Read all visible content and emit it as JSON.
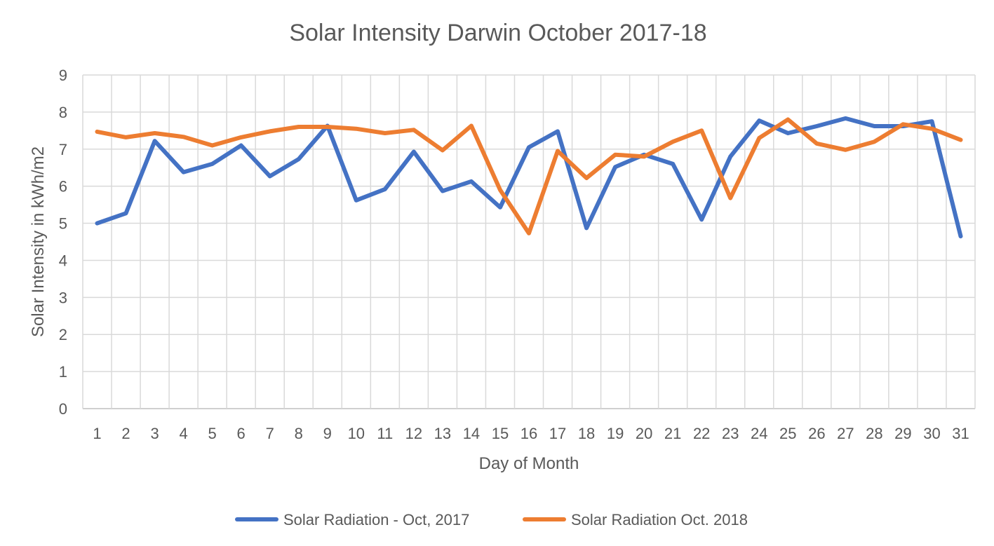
{
  "chart_data": {
    "type": "line",
    "title": "Solar Intensity Darwin October 2017-18",
    "xlabel": "Day of Month",
    "ylabel": "Solar Intensity in kWh/m2",
    "ylim": [
      0,
      9
    ],
    "yticks": [
      "0",
      "1",
      "2",
      "3",
      "4",
      "5",
      "6",
      "7",
      "8",
      "9"
    ],
    "grid": true,
    "legend_position": "bottom",
    "categories": [
      "1",
      "2",
      "3",
      "4",
      "5",
      "6",
      "7",
      "8",
      "9",
      "10",
      "11",
      "12",
      "13",
      "14",
      "15",
      "16",
      "17",
      "18",
      "19",
      "20",
      "21",
      "22",
      "23",
      "24",
      "25",
      "26",
      "27",
      "28",
      "29",
      "30",
      "31"
    ],
    "series": [
      {
        "name": "Solar Radiation - Oct, 2017",
        "color": "#4472c4",
        "values": [
          5.0,
          5.27,
          7.22,
          6.38,
          6.6,
          7.1,
          6.27,
          6.73,
          7.63,
          5.62,
          5.92,
          6.93,
          5.87,
          6.13,
          5.43,
          7.05,
          7.48,
          4.87,
          6.52,
          6.85,
          6.6,
          5.1,
          6.8,
          7.77,
          7.43,
          7.62,
          7.83,
          7.62,
          7.62,
          7.75,
          4.65
        ]
      },
      {
        "name": "Solar Radiation Oct. 2018",
        "color": "#ed7d31",
        "values": [
          7.47,
          7.32,
          7.43,
          7.33,
          7.1,
          7.32,
          7.48,
          7.6,
          7.6,
          7.55,
          7.43,
          7.52,
          6.97,
          7.63,
          5.9,
          4.73,
          6.95,
          6.22,
          6.85,
          6.8,
          7.2,
          7.5,
          5.68,
          7.3,
          7.8,
          7.15,
          6.98,
          7.2,
          7.67,
          7.55,
          7.25
        ]
      }
    ]
  }
}
